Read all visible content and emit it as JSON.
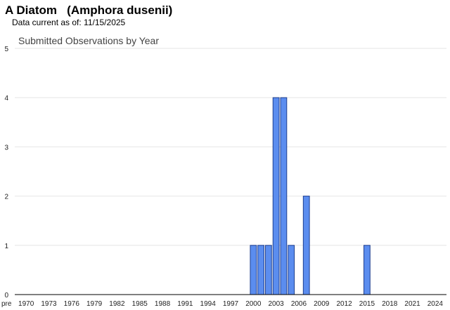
{
  "header": {
    "title": "A Diatom   (Amphora dusenii)",
    "data_current": "Data current as of: 11/15/2025"
  },
  "chart_data": {
    "type": "bar",
    "title": "Submitted Observations by Year",
    "xlabel": "",
    "ylabel": "",
    "ylim": [
      0,
      5
    ],
    "yticks": [
      0,
      1,
      2,
      3,
      4,
      5
    ],
    "grid": true,
    "categories": [
      "pre 1970",
      "1970",
      "1971",
      "1972",
      "1973",
      "1974",
      "1975",
      "1976",
      "1977",
      "1978",
      "1979",
      "1980",
      "1981",
      "1982",
      "1983",
      "1984",
      "1985",
      "1986",
      "1987",
      "1988",
      "1989",
      "1990",
      "1991",
      "1992",
      "1993",
      "1994",
      "1995",
      "1996",
      "1997",
      "1998",
      "1999",
      "2000",
      "2001",
      "2002",
      "2003",
      "2004",
      "2005",
      "2006",
      "2007",
      "2008",
      "2009",
      "2010",
      "2011",
      "2012",
      "2013",
      "2014",
      "2015",
      "2016",
      "2017",
      "2018",
      "2019",
      "2020",
      "2021",
      "2022",
      "2023",
      "2024",
      "2025"
    ],
    "values": [
      0,
      0,
      0,
      0,
      0,
      0,
      0,
      0,
      0,
      0,
      0,
      0,
      0,
      0,
      0,
      0,
      0,
      0,
      0,
      0,
      0,
      0,
      0,
      0,
      0,
      0,
      0,
      0,
      0,
      0,
      0,
      1,
      1,
      1,
      4,
      4,
      1,
      0,
      2,
      0,
      0,
      0,
      0,
      0,
      0,
      0,
      1,
      0,
      0,
      0,
      0,
      0,
      0,
      0,
      0,
      0,
      0
    ],
    "xtick_labels": [
      "pre",
      "1970",
      "1973",
      "1976",
      "1979",
      "1982",
      "1985",
      "1988",
      "1991",
      "1994",
      "1997",
      "2000",
      "2003",
      "2006",
      "2009",
      "2012",
      "2015",
      "2018",
      "2021",
      "2024"
    ],
    "colors": {
      "bar_fill": "#5b8def",
      "bar_stroke": "#1f3f8f",
      "grid": "#e6e6e6",
      "axis": "#000000"
    }
  }
}
